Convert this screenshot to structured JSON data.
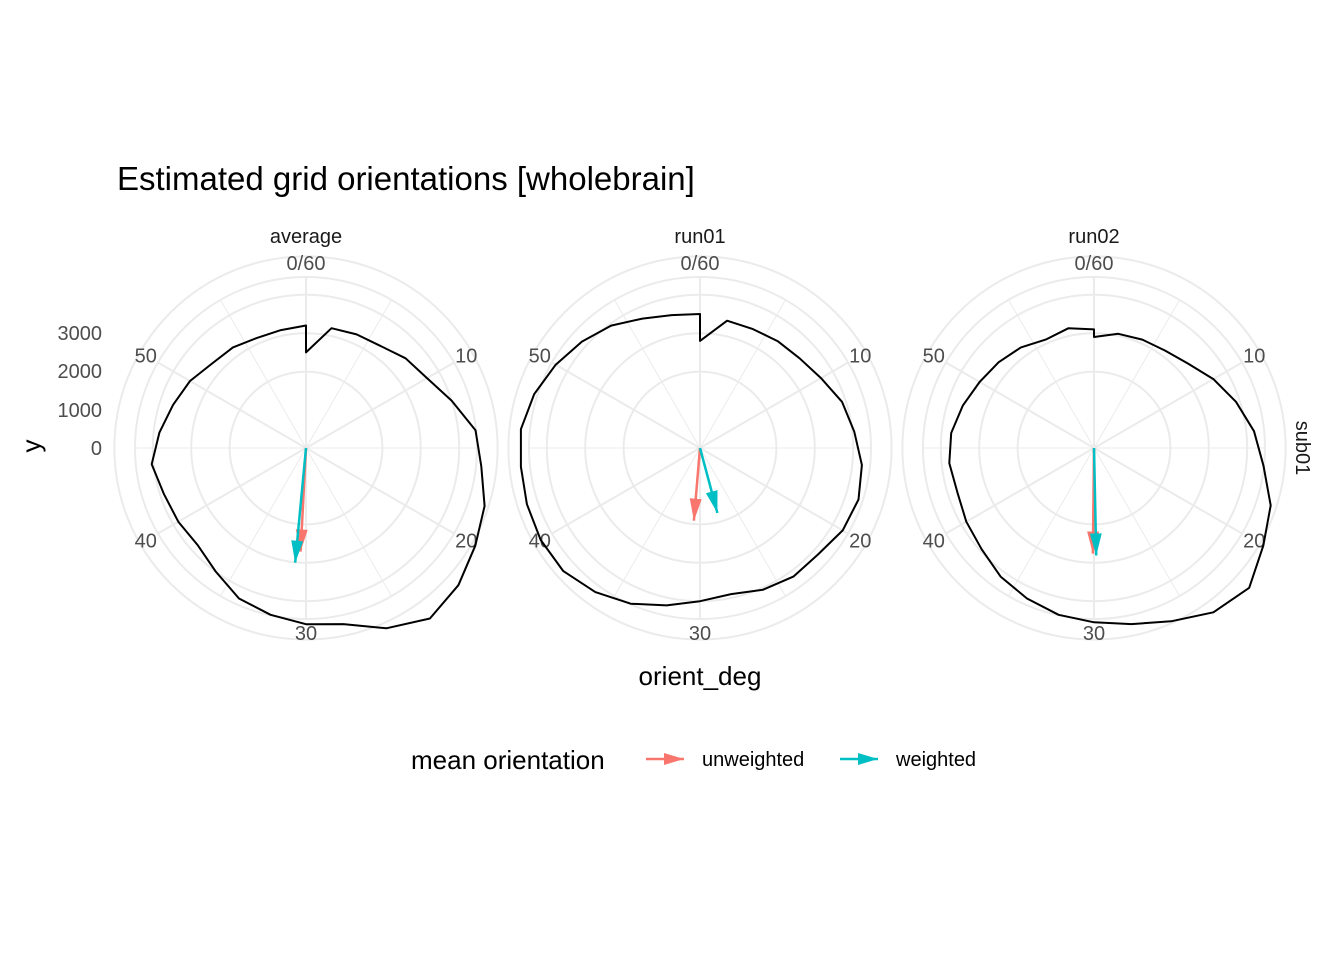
{
  "chart_data": {
    "type": "line",
    "coord": "polar",
    "title": "Estimated grid orientations [wholebrain]",
    "xlabel": "orient_deg",
    "ylabel": "y",
    "facet_row_label": "sub01",
    "x_range": [
      0,
      60
    ],
    "x_tick_labels": [
      "0/60",
      "10",
      "20",
      "30",
      "40",
      "50"
    ],
    "x_ticks": [
      0,
      10,
      20,
      30,
      40,
      50
    ],
    "ylim": [
      -1000,
      3500
    ],
    "y_tick_labels": [
      "0",
      "1000",
      "2000",
      "3000"
    ],
    "y_ticks": [
      0,
      1000,
      2000,
      3000
    ],
    "grid": true,
    "legend": {
      "title": "mean orientation",
      "placement": "bottom",
      "entries": [
        {
          "label": "unweighted",
          "color": "#F8766D"
        },
        {
          "label": "weighted",
          "color": "#00BFC4"
        }
      ]
    },
    "panels": [
      {
        "label": "average",
        "series_x": [
          0,
          2,
          4,
          6,
          8,
          10,
          12,
          14,
          16,
          18,
          20,
          22,
          24,
          26,
          28,
          30,
          32,
          34,
          36,
          38,
          40,
          42,
          44,
          46,
          48,
          50,
          52,
          54,
          56,
          58,
          60
        ],
        "series_y": [
          500,
          1200,
          1250,
          1300,
          1500,
          1650,
          2000,
          2450,
          2600,
          2900,
          3100,
          3350,
          3500,
          3150,
          2700,
          2600,
          2450,
          2300,
          2000,
          1800,
          1850,
          1900,
          2050,
          1850,
          1650,
          1500,
          1300,
          1250,
          1150,
          1150,
          1200
        ],
        "arrows": [
          {
            "name": "unweighted",
            "angle_deg": 30.5,
            "length": 2700
          },
          {
            "name": "weighted",
            "angle_deg": 30.9,
            "length": 3000
          }
        ]
      },
      {
        "label": "run01",
        "series_x": [
          0,
          2,
          4,
          6,
          8,
          10,
          12,
          14,
          16,
          18,
          20,
          22,
          24,
          26,
          28,
          30,
          32,
          34,
          36,
          38,
          40,
          42,
          44,
          46,
          48,
          50,
          52,
          54,
          56,
          58,
          60
        ],
        "series_y": [
          800,
          1400,
          1400,
          1450,
          1500,
          1650,
          1900,
          2050,
          2250,
          2350,
          2300,
          2150,
          2150,
          2050,
          1900,
          2000,
          2200,
          2450,
          2650,
          2800,
          2800,
          2750,
          2700,
          2700,
          2550,
          2350,
          2150,
          1950,
          1700,
          1550,
          1500
        ],
        "arrows": [
          {
            "name": "unweighted",
            "angle_deg": 30.8,
            "length": 1900
          },
          {
            "name": "weighted",
            "angle_deg": 27.5,
            "length": 1750
          }
        ]
      },
      {
        "label": "run02",
        "series_x": [
          0,
          2,
          4,
          6,
          8,
          10,
          12,
          14,
          16,
          18,
          20,
          22,
          24,
          26,
          28,
          30,
          32,
          34,
          36,
          38,
          40,
          42,
          44,
          46,
          48,
          50,
          52,
          54,
          56,
          58,
          60
        ],
        "series_y": [
          900,
          1050,
          1100,
          1150,
          1300,
          1600,
          1900,
          2200,
          2450,
          2850,
          3100,
          3450,
          3300,
          2950,
          2700,
          2550,
          2450,
          2300,
          2150,
          1950,
          1850,
          1750,
          1800,
          1750,
          1600,
          1450,
          1350,
          1250,
          1100,
          1200,
          1100
        ],
        "arrows": [
          {
            "name": "unweighted",
            "angle_deg": 30.1,
            "length": 2750
          },
          {
            "name": "weighted",
            "angle_deg": 29.8,
            "length": 2800
          }
        ]
      }
    ]
  }
}
